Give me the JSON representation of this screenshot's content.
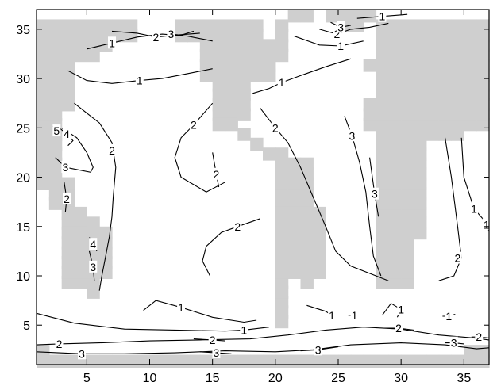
{
  "chart_data": {
    "type": "contour",
    "title": "",
    "xlabel": "",
    "ylabel": "",
    "xlim": [
      1,
      37
    ],
    "ylim": [
      1,
      37
    ],
    "xticks": [
      "5",
      "10",
      "15",
      "20",
      "25",
      "30",
      "35"
    ],
    "yticks": [
      "5",
      "10",
      "15",
      "20",
      "25",
      "30",
      "35"
    ],
    "grid": false,
    "land_mask_color": "#cfcfcf",
    "contour_color": "#000000",
    "levels": [
      "1",
      "2",
      "3",
      "4",
      "5"
    ],
    "contours": [
      {
        "level": "1",
        "label_pos": [
          7,
          33.6
        ],
        "points": [
          [
            5,
            33
          ],
          [
            7,
            33.6
          ],
          [
            9,
            34.2
          ],
          [
            11,
            34.5
          ],
          [
            13,
            34.3
          ],
          [
            15,
            33.8
          ]
        ]
      },
      {
        "level": "2",
        "label_pos": [
          10.5,
          34.2
        ],
        "points": [
          [
            7,
            34.8
          ],
          [
            9,
            34.6
          ],
          [
            10.5,
            34.2
          ],
          [
            12,
            34.4
          ],
          [
            14,
            34.6
          ]
        ]
      },
      {
        "level": "3",
        "label_pos": [
          11.7,
          34.5
        ],
        "points": [
          [
            11.5,
            34.7
          ],
          [
            11.7,
            34.5
          ],
          [
            12.5,
            34.4
          ],
          [
            13.5,
            34.8
          ]
        ]
      },
      {
        "level": "1",
        "label_pos": [
          9.2,
          29.8
        ],
        "points": [
          [
            3.5,
            30.8
          ],
          [
            5,
            29.8
          ],
          [
            7,
            29.5
          ],
          [
            9.2,
            29.8
          ],
          [
            11,
            30
          ],
          [
            13,
            30.5
          ],
          [
            15,
            31
          ]
        ]
      },
      {
        "level": "2",
        "label_pos": [
          7,
          22.7
        ],
        "points": [
          [
            4,
            27.5
          ],
          [
            5,
            26.5
          ],
          [
            6,
            25.5
          ],
          [
            7,
            23.5
          ],
          [
            7.3,
            21
          ],
          [
            7.1,
            18
          ],
          [
            7,
            16
          ],
          [
            6.8,
            14
          ],
          [
            6.5,
            12
          ],
          [
            6.2,
            10
          ],
          [
            6,
            8.5
          ]
        ]
      },
      {
        "level": "3",
        "label_pos": [
          3.3,
          21
        ],
        "points": [
          [
            3,
            25
          ],
          [
            4.2,
            24
          ],
          [
            5,
            22.5
          ],
          [
            5.5,
            21
          ],
          [
            5.3,
            20.5
          ],
          [
            3.3,
            21
          ],
          [
            2.5,
            22
          ]
        ]
      },
      {
        "level": "4",
        "label_pos": [
          3.4,
          24.4
        ],
        "points": [
          [
            2.8,
            25
          ],
          [
            3.4,
            24.4
          ],
          [
            3.9,
            23.7
          ],
          [
            3.5,
            23.2
          ]
        ]
      },
      {
        "level": "5",
        "label_pos": [
          2.6,
          24.7
        ],
        "points": [
          [
            2.3,
            25.2
          ],
          [
            2.6,
            24.7
          ],
          [
            2.8,
            24.2
          ]
        ]
      },
      {
        "level": "2",
        "label_pos": [
          3.4,
          17.8
        ],
        "points": [
          [
            3.2,
            19.5
          ],
          [
            3.4,
            17.8
          ],
          [
            3.3,
            16.5
          ]
        ]
      },
      {
        "level": "3",
        "label_pos": [
          5.5,
          10.9
        ],
        "points": [
          [
            5.2,
            12.5
          ],
          [
            5.5,
            10.9
          ],
          [
            5.6,
            9.5
          ]
        ]
      },
      {
        "level": "4",
        "label_pos": [
          5.5,
          13.2
        ],
        "points": [
          [
            5.2,
            13.9
          ],
          [
            5.5,
            13.2
          ],
          [
            5.8,
            12.5
          ]
        ]
      },
      {
        "level": "2",
        "label_pos": [
          13.5,
          25.3
        ],
        "points": [
          [
            15,
            27.5
          ],
          [
            13.5,
            25.3
          ],
          [
            12.5,
            24
          ],
          [
            12,
            22
          ],
          [
            12.5,
            20
          ],
          [
            14.5,
            18.5
          ],
          [
            16,
            19.5
          ]
        ]
      },
      {
        "level": "2",
        "label_pos": [
          15.3,
          20.3
        ],
        "points": [
          [
            15,
            22.5
          ],
          [
            15.3,
            20.3
          ],
          [
            15.5,
            19
          ]
        ]
      },
      {
        "level": "1",
        "label_pos": [
          20.5,
          29.6
        ],
        "points": [
          [
            18.2,
            28.5
          ],
          [
            19.5,
            29
          ],
          [
            20.5,
            29.6
          ],
          [
            22,
            30.3
          ],
          [
            24,
            31.2
          ],
          [
            26,
            32
          ]
        ]
      },
      {
        "level": "1",
        "label_pos": [
          25.2,
          33.3
        ],
        "points": [
          [
            21.5,
            34.3
          ],
          [
            23.5,
            33.4
          ],
          [
            25.2,
            33.3
          ],
          [
            27,
            33.8
          ]
        ]
      },
      {
        "level": "2",
        "label_pos": [
          24.9,
          34.5
        ],
        "points": [
          [
            23.5,
            35
          ],
          [
            24.9,
            34.5
          ],
          [
            26,
            35
          ],
          [
            27.5,
            35.2
          ],
          [
            29,
            35.6
          ]
        ]
      },
      {
        "level": "3",
        "label_pos": [
          25.2,
          35.2
        ],
        "points": [
          [
            24.4,
            35.7
          ],
          [
            25.2,
            35.2
          ],
          [
            26,
            35.4
          ]
        ]
      },
      {
        "level": "1",
        "label_pos": [
          28.5,
          36.3
        ],
        "points": [
          [
            26.5,
            36.1
          ],
          [
            28.5,
            36.3
          ],
          [
            30.5,
            36.5
          ]
        ]
      },
      {
        "level": "2",
        "label_pos": [
          20,
          25
        ],
        "points": [
          [
            18.8,
            27
          ],
          [
            20,
            25
          ],
          [
            21,
            23.5
          ],
          [
            22,
            21
          ],
          [
            23,
            18
          ],
          [
            24,
            15
          ],
          [
            24.8,
            12.5
          ],
          [
            26,
            11
          ],
          [
            28,
            10
          ],
          [
            29,
            9.5
          ]
        ]
      },
      {
        "level": "3",
        "label_pos": [
          26.1,
          24.2
        ],
        "points": [
          [
            25.5,
            26.2
          ],
          [
            26.1,
            24.2
          ],
          [
            26.7,
            21.5
          ],
          [
            27.2,
            18.5
          ],
          [
            27.5,
            15
          ],
          [
            27.8,
            12
          ],
          [
            28.4,
            10
          ]
        ]
      },
      {
        "level": "3",
        "label_pos": [
          27.9,
          18.3
        ],
        "points": [
          [
            27.5,
            22
          ],
          [
            27.9,
            18.3
          ],
          [
            28.2,
            16
          ]
        ]
      },
      {
        "level": "2",
        "label_pos": [
          17,
          15
        ],
        "points": [
          [
            18.8,
            15.8
          ],
          [
            17,
            15
          ],
          [
            15.7,
            14.4
          ],
          [
            14.5,
            13
          ],
          [
            14.2,
            11.5
          ],
          [
            14.8,
            10
          ]
        ]
      },
      {
        "level": "2",
        "label_pos": [
          34.5,
          11.8
        ],
        "points": [
          [
            33.5,
            24
          ],
          [
            34,
            20
          ],
          [
            34.5,
            15
          ],
          [
            34.8,
            11.8
          ],
          [
            34.2,
            10
          ],
          [
            33,
            9.5
          ]
        ]
      },
      {
        "level": "1",
        "label_pos": [
          35.8,
          16.8
        ],
        "points": [
          [
            34.8,
            24
          ],
          [
            35,
            20
          ],
          [
            35.8,
            16.8
          ],
          [
            36.7,
            15.5
          ]
        ]
      },
      {
        "level": "1",
        "label_pos": [
          36.8,
          15.2
        ],
        "points": [
          [
            36.7,
            15.8
          ],
          [
            36.8,
            15.2
          ],
          [
            37,
            14.5
          ]
        ]
      },
      {
        "level": "1",
        "label_pos": [
          12.5,
          6.8
        ],
        "points": [
          [
            9.5,
            6.5
          ],
          [
            10.5,
            7.5
          ],
          [
            12.5,
            6.8
          ],
          [
            15,
            5.8
          ],
          [
            17.5,
            5.3
          ],
          [
            18.5,
            5.5
          ]
        ]
      },
      {
        "level": "1",
        "label_pos": [
          17.5,
          4.5
        ],
        "points": [
          [
            1,
            6.2
          ],
          [
            4,
            5.2
          ],
          [
            8,
            4.6
          ],
          [
            12,
            4.5
          ],
          [
            16,
            4.4
          ],
          [
            17.5,
            4.5
          ],
          [
            19.5,
            4.8
          ]
        ]
      },
      {
        "level": "1",
        "label_pos": [
          24.5,
          6
        ],
        "points": [
          [
            22.5,
            7
          ],
          [
            24,
            6.4
          ],
          [
            24.5,
            6
          ]
        ]
      },
      {
        "level": "1",
        "label_pos": [
          26.3,
          6
        ],
        "points": [
          [
            25.8,
            6
          ],
          [
            26.3,
            6
          ],
          [
            26.5,
            5.6
          ]
        ]
      },
      {
        "level": "1",
        "label_pos": [
          30,
          6.6
        ],
        "points": [
          [
            28.5,
            6
          ],
          [
            29.2,
            7.2
          ],
          [
            30,
            6.6
          ],
          [
            29.7,
            5.8
          ]
        ]
      },
      {
        "level": "1",
        "label_pos": [
          33.8,
          5.9
        ],
        "points": [
          [
            33.3,
            5.9
          ],
          [
            33.8,
            5.9
          ],
          [
            34.3,
            6.1
          ]
        ]
      },
      {
        "level": "2",
        "label_pos": [
          2.8,
          3.1
        ],
        "points": [
          [
            1,
            3
          ],
          [
            2.8,
            3.1
          ],
          [
            6,
            3.2
          ],
          [
            10,
            3.4
          ],
          [
            14,
            3.5
          ],
          [
            18,
            3.6
          ],
          [
            21,
            4
          ],
          [
            24,
            4.5
          ],
          [
            27,
            4.8
          ],
          [
            30,
            4.6
          ],
          [
            33,
            4
          ],
          [
            35.8,
            3.7
          ],
          [
            37,
            3.5
          ]
        ]
      },
      {
        "level": "3",
        "label_pos": [
          4.6,
          2.1
        ],
        "points": [
          [
            1,
            2.3
          ],
          [
            4.6,
            2.1
          ],
          [
            8,
            2.1
          ],
          [
            12,
            2.2
          ],
          [
            16,
            2.4
          ],
          [
            20,
            2.3
          ],
          [
            23,
            2.5
          ],
          [
            26,
            3
          ],
          [
            30,
            3.2
          ],
          [
            33.5,
            3
          ],
          [
            36,
            2.6
          ],
          [
            37,
            2.7
          ]
        ]
      },
      {
        "level": "2",
        "label_pos": [
          15,
          3.5
        ],
        "points": [
          [
            13.5,
            3.6
          ],
          [
            15,
            3.5
          ],
          [
            16,
            3.4
          ]
        ]
      },
      {
        "level": "3",
        "label_pos": [
          15.3,
          2.2
        ],
        "points": [
          [
            14,
            2.3
          ],
          [
            15.3,
            2.2
          ],
          [
            16.5,
            2.1
          ]
        ]
      },
      {
        "level": "3",
        "label_pos": [
          23.4,
          2.5
        ],
        "points": [
          [
            22,
            2.4
          ],
          [
            23.4,
            2.5
          ],
          [
            25,
            2.8
          ]
        ]
      },
      {
        "level": "2",
        "label_pos": [
          29.8,
          4.7
        ],
        "points": [
          [
            28.5,
            4.7
          ],
          [
            29.8,
            4.7
          ],
          [
            31,
            4.5
          ]
        ]
      },
      {
        "level": "3",
        "label_pos": [
          34.2,
          3.2
        ],
        "points": [
          [
            33.5,
            3.2
          ],
          [
            34.2,
            3.2
          ],
          [
            35,
            3.1
          ]
        ]
      },
      {
        "level": "2",
        "label_pos": [
          36.2,
          3.8
        ],
        "points": [
          [
            35.6,
            3.8
          ],
          [
            36.2,
            3.8
          ],
          [
            37,
            3.7
          ]
        ]
      }
    ]
  }
}
